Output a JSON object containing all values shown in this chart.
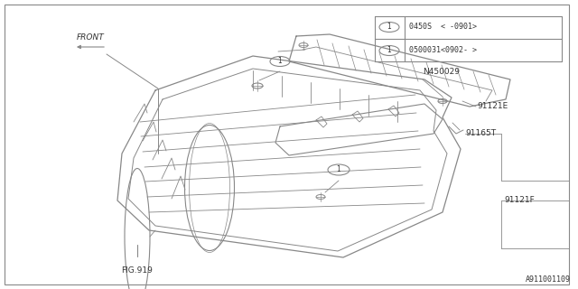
{
  "bg_color": "#ffffff",
  "line_color": "#888888",
  "text_color": "#333333",
  "fig_width": 6.4,
  "fig_height": 3.2,
  "dpi": 100,
  "diagram_id": "A911001109",
  "callout_line1": "0450S  < -0901>",
  "callout_line2": "0500031<0902- >",
  "label_N450029": "N450029",
  "label_91121E": "91121E",
  "label_91165T": "91165T",
  "label_91121F": "91121F",
  "label_FIG919": "FIG.919",
  "label_FRONT": "FRONT"
}
